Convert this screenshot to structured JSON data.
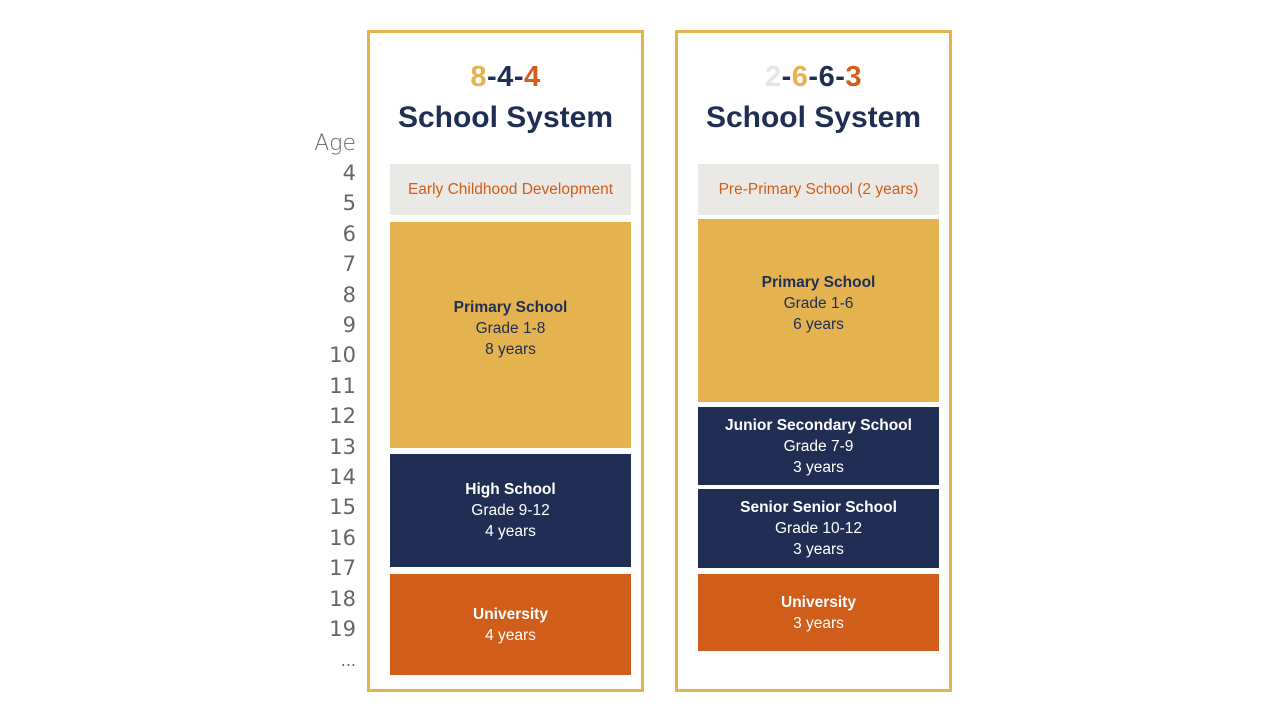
{
  "age_axis": {
    "label": "Age",
    "ticks": [
      "4",
      "5",
      "6",
      "7",
      "8",
      "9",
      "10",
      "11",
      "12",
      "13",
      "14",
      "15",
      "16",
      "17",
      "18",
      "19",
      "..."
    ]
  },
  "colors": {
    "gold": "#e4b24f",
    "navy": "#1f2e52",
    "orange": "#d05d19",
    "light_grey": "#ebe9e6",
    "pale": "#e8e6e3"
  },
  "left": {
    "code_parts": [
      "8",
      "-",
      "4",
      "-",
      "4"
    ],
    "system_label": "School System",
    "ecd": "Early Childhood Development",
    "primary": {
      "title": "Primary School",
      "grade": "Grade 1-8",
      "duration": "8 years"
    },
    "high": {
      "title": "High School",
      "grade": "Grade 9-12",
      "duration": "4 years"
    },
    "university": {
      "title": "University",
      "duration": "4 years"
    }
  },
  "right": {
    "code_parts": [
      "2",
      "-",
      "6",
      "-",
      "6",
      "-",
      "3"
    ],
    "system_label": "School System",
    "pre_primary": "Pre-Primary School (2 years)",
    "primary": {
      "title": "Primary School",
      "grade": "Grade 1-6",
      "duration": "6 years"
    },
    "junior": {
      "title": "Junior Secondary School",
      "grade": "Grade 7-9",
      "duration": "3 years"
    },
    "senior": {
      "title": "Senior Senior School",
      "grade": "Grade 10-12",
      "duration": "3 years"
    },
    "university": {
      "title": "University",
      "duration": "3 years"
    }
  }
}
